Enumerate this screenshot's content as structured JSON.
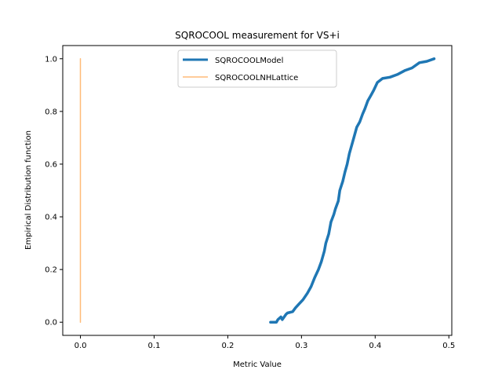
{
  "chart_data": {
    "type": "line",
    "title": "SQROCOOL measurement for VS+i",
    "xlabel": "Metric Value",
    "ylabel": "Empirical Distribution function",
    "xlim": [
      -0.024,
      0.504
    ],
    "ylim": [
      -0.05,
      1.05
    ],
    "xticks": [
      0.0,
      0.1,
      0.2,
      0.3,
      0.4,
      0.5
    ],
    "xtick_labels": [
      "0.0",
      "0.1",
      "0.2",
      "0.3",
      "0.4",
      "0.5"
    ],
    "yticks": [
      0.0,
      0.2,
      0.4,
      0.6,
      0.8,
      1.0
    ],
    "ytick_labels": [
      "0.0",
      "0.2",
      "0.4",
      "0.6",
      "0.8",
      "1.0"
    ],
    "grid": false,
    "legend_position": "upper center",
    "series": [
      {
        "name": "SQROCOOLModel",
        "color": "#1f77b4",
        "x": [
          0.258,
          0.266,
          0.268,
          0.272,
          0.274,
          0.279,
          0.281,
          0.288,
          0.292,
          0.297,
          0.302,
          0.308,
          0.313,
          0.318,
          0.323,
          0.327,
          0.331,
          0.333,
          0.337,
          0.34,
          0.344,
          0.346,
          0.35,
          0.352,
          0.356,
          0.359,
          0.362,
          0.365,
          0.369,
          0.372,
          0.375,
          0.379,
          0.383,
          0.386,
          0.39,
          0.394,
          0.398,
          0.403,
          0.41,
          0.42,
          0.43,
          0.44,
          0.45,
          0.46,
          0.47,
          0.48
        ],
        "y": [
          0.0,
          0.0,
          0.01,
          0.02,
          0.01,
          0.03,
          0.035,
          0.04,
          0.055,
          0.07,
          0.085,
          0.11,
          0.135,
          0.17,
          0.2,
          0.23,
          0.27,
          0.3,
          0.335,
          0.38,
          0.41,
          0.43,
          0.46,
          0.5,
          0.535,
          0.57,
          0.6,
          0.64,
          0.68,
          0.71,
          0.74,
          0.76,
          0.79,
          0.81,
          0.84,
          0.86,
          0.88,
          0.91,
          0.925,
          0.93,
          0.94,
          0.955,
          0.965,
          0.985,
          0.99,
          1.0
        ]
      },
      {
        "name": "SQROCOOLNHLattice",
        "color": "#ffbb78",
        "x": [
          0.0,
          0.0
        ],
        "y": [
          0.0,
          1.0
        ]
      }
    ]
  }
}
